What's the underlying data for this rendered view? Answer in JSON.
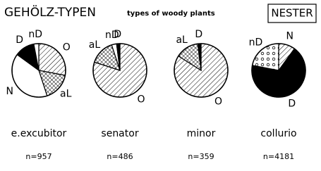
{
  "title": "GEHÖLZ-TYPEN",
  "subtitle": "types of woody plants",
  "label": "NESTER",
  "chart_data": [
    {
      "type": "pie",
      "title": "e.excubitor",
      "sample": "n=957",
      "categories": [
        "O",
        "aL",
        "N",
        "D",
        "nD"
      ],
      "values": [
        28,
        17,
        40,
        12,
        3
      ],
      "fills": [
        "hatch",
        "cross",
        "white",
        "black",
        "white"
      ]
    },
    {
      "type": "pie",
      "title": "senator",
      "sample": "n=486",
      "categories": [
        "O",
        "aL",
        "nD",
        "D"
      ],
      "values": [
        80,
        15,
        3,
        2
      ],
      "fills": [
        "hatch",
        "cross",
        "white",
        "black"
      ]
    },
    {
      "type": "pie",
      "title": "minor",
      "sample": "n=359",
      "categories": [
        "O",
        "aL",
        "D"
      ],
      "values": [
        84,
        14,
        2
      ],
      "fills": [
        "hatch",
        "cross",
        "black"
      ]
    },
    {
      "type": "pie",
      "title": "collurio",
      "sample": "n=4181",
      "categories": [
        "N",
        "D",
        "nD"
      ],
      "values": [
        10,
        68,
        22
      ],
      "fills": [
        "hatch",
        "black",
        "dots"
      ]
    }
  ]
}
